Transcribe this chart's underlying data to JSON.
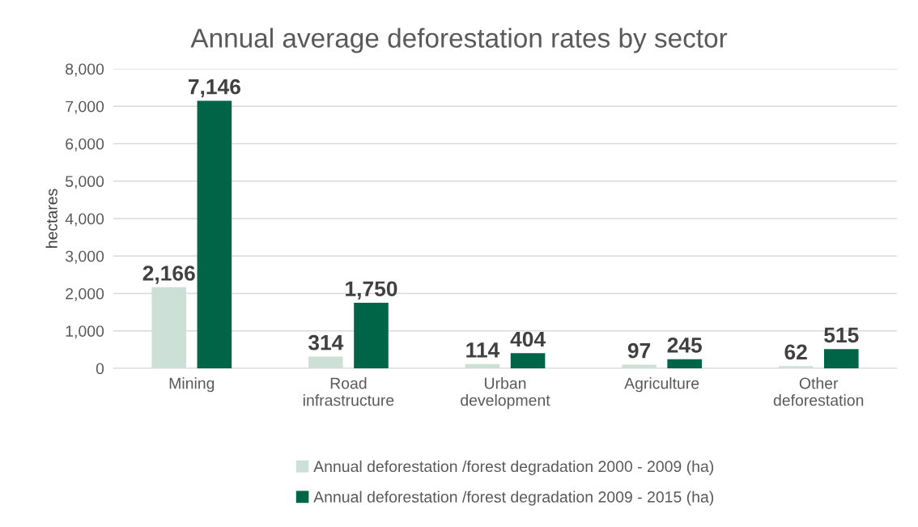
{
  "chart_data": {
    "type": "bar",
    "title": "Annual average deforestation rates by sector",
    "ylabel": "hectares",
    "categories": [
      "Mining",
      "Road\ninfrastructure",
      "Urban\ndevelopment",
      "Agriculture",
      "Other\ndeforestation"
    ],
    "series": [
      {
        "name": "Annual deforestation /forest degradation 2000 - 2009 (ha)",
        "color": "#cce0d8",
        "values": [
          2166,
          314,
          114,
          97,
          62
        ],
        "value_labels": [
          "2,166",
          "314",
          "114",
          "97",
          "62"
        ]
      },
      {
        "name": "Annual deforestation /forest degradation 2009 - 2015 (ha)",
        "color": "#006446",
        "values": [
          7146,
          1750,
          404,
          245,
          515
        ],
        "value_labels": [
          "7,146",
          "1,750",
          "404",
          "245",
          "515"
        ]
      }
    ],
    "ylim": [
      0,
      8000
    ],
    "yticks": [
      0,
      {
        "value": 1000,
        "label": "1,000"
      },
      {
        "value": 2000,
        "label": "2,000"
      },
      {
        "value": 3000,
        "label": "3,000"
      },
      {
        "value": 4000,
        "label": "4,000"
      },
      {
        "value": 5000,
        "label": "5,000"
      },
      {
        "value": 6000,
        "label": "6,000"
      },
      {
        "value": 7000,
        "label": "7,000"
      },
      {
        "value": 8000,
        "label": "8,000"
      }
    ],
    "grid": "y",
    "legend": "bottom"
  }
}
